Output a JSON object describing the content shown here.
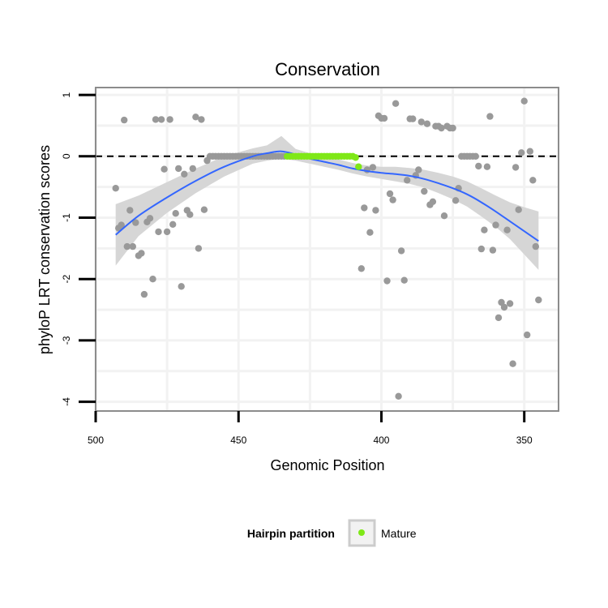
{
  "chart_data": {
    "type": "scatter",
    "title": "Conservation",
    "xlabel": "Genomic Position",
    "ylabel": "phyloP LRT conservation scores",
    "x_reversed": true,
    "xlim": [
      500,
      338
    ],
    "ylim": [
      -4.15,
      1.12
    ],
    "x_ticks": [
      500,
      450,
      400,
      350
    ],
    "x_tick_labels": [
      "500",
      "450",
      "400",
      "350"
    ],
    "y_ticks": [
      1,
      0,
      -1,
      -2,
      -3,
      -4
    ],
    "y_tick_labels": [
      "1",
      "0",
      "-1",
      "-2",
      "-3",
      "-4"
    ],
    "grid": true,
    "reference_line": {
      "y": 0,
      "style": "dashed"
    },
    "colors": {
      "points": "#999999",
      "mature": "#7fe817",
      "smooth": "#3366ff",
      "band": "#d6d6d6",
      "panel_border": "#8c8c8c",
      "grid": "#f2f2f2"
    },
    "legend": {
      "title": "Hairpin partition",
      "placement": "bottom",
      "entries": [
        "Mature"
      ]
    },
    "series": [
      {
        "role": "other",
        "points": [
          [
            493,
            -0.52
          ],
          [
            492,
            -1.17
          ],
          [
            491,
            -1.12
          ],
          [
            490,
            0.59
          ],
          [
            489,
            -1.47
          ],
          [
            488,
            -0.88
          ],
          [
            487,
            -1.47
          ],
          [
            486,
            -1.08
          ],
          [
            485,
            -1.62
          ],
          [
            484,
            -1.58
          ],
          [
            483,
            -2.25
          ],
          [
            482,
            -1.07
          ],
          [
            481,
            -1.01
          ],
          [
            480,
            -2.0
          ],
          [
            479,
            0.6
          ],
          [
            478,
            -1.23
          ],
          [
            477,
            0.6
          ],
          [
            476,
            -0.21
          ],
          [
            475,
            -1.23
          ],
          [
            474,
            0.6
          ],
          [
            473,
            -1.11
          ],
          [
            472,
            -0.93
          ],
          [
            471,
            -0.2
          ],
          [
            470,
            -2.12
          ],
          [
            469,
            -0.29
          ],
          [
            468,
            -0.88
          ],
          [
            467,
            -0.95
          ],
          [
            466,
            -0.2
          ],
          [
            465,
            0.64
          ],
          [
            464,
            -1.5
          ],
          [
            463,
            0.6
          ],
          [
            462,
            -0.87
          ],
          [
            461,
            -0.07
          ],
          [
            460,
            0.0
          ],
          [
            459,
            0.0
          ],
          [
            458,
            0.0
          ],
          [
            457,
            0.0
          ],
          [
            456,
            0.0
          ],
          [
            455,
            0.0
          ],
          [
            454,
            0.0
          ],
          [
            453,
            0.0
          ],
          [
            452,
            0.0
          ],
          [
            451,
            0.0
          ],
          [
            450,
            0.0
          ],
          [
            449,
            0.0
          ],
          [
            448,
            0.0
          ],
          [
            447,
            0.0
          ],
          [
            446,
            0.0
          ],
          [
            445,
            0.0
          ],
          [
            444,
            0.0
          ],
          [
            443,
            0.0
          ],
          [
            442,
            0.0
          ],
          [
            441,
            0.0
          ],
          [
            440,
            0.0
          ],
          [
            439,
            0.0
          ],
          [
            438,
            0.0
          ],
          [
            437,
            0.0
          ],
          [
            436,
            0.0
          ],
          [
            435,
            0.0
          ],
          [
            434,
            0.0
          ],
          [
            407,
            -1.83
          ],
          [
            406,
            -0.84
          ],
          [
            405,
            -0.22
          ],
          [
            404,
            -1.24
          ],
          [
            403,
            -0.18
          ],
          [
            402,
            -0.88
          ],
          [
            401,
            0.66
          ],
          [
            400,
            0.62
          ],
          [
            399,
            0.62
          ],
          [
            398,
            -2.03
          ],
          [
            397,
            -0.61
          ],
          [
            396,
            -0.71
          ],
          [
            395,
            0.86
          ],
          [
            394,
            -3.91
          ],
          [
            393,
            -1.54
          ],
          [
            392,
            -2.02
          ],
          [
            391,
            -0.39
          ],
          [
            390,
            0.61
          ],
          [
            389,
            0.61
          ],
          [
            388,
            -0.31
          ],
          [
            387,
            -0.22
          ],
          [
            386,
            0.56
          ],
          [
            385,
            -0.57
          ],
          [
            384,
            0.53
          ],
          [
            383,
            -0.79
          ],
          [
            382,
            -0.74
          ],
          [
            381,
            0.49
          ],
          [
            380,
            0.49
          ],
          [
            379,
            0.46
          ],
          [
            378,
            -0.97
          ],
          [
            377,
            0.49
          ],
          [
            376,
            0.46
          ],
          [
            375,
            0.46
          ],
          [
            374,
            -0.72
          ],
          [
            373,
            -0.52
          ],
          [
            372,
            0.0
          ],
          [
            371,
            0.0
          ],
          [
            370,
            0.0
          ],
          [
            369,
            0.0
          ],
          [
            368,
            0.0
          ],
          [
            367,
            0.0
          ],
          [
            366,
            -0.16
          ],
          [
            365,
            -1.51
          ],
          [
            364,
            -1.2
          ],
          [
            363,
            -0.17
          ],
          [
            362,
            0.65
          ],
          [
            361,
            -1.53
          ],
          [
            360,
            -1.12
          ],
          [
            359,
            -2.63
          ],
          [
            358,
            -2.38
          ],
          [
            357,
            -2.46
          ],
          [
            356,
            -1.2
          ],
          [
            355,
            -2.4
          ],
          [
            354,
            -3.38
          ],
          [
            353,
            -0.18
          ],
          [
            352,
            -0.87
          ],
          [
            351,
            0.06
          ],
          [
            350,
            0.9
          ],
          [
            349,
            -2.91
          ],
          [
            348,
            0.08
          ],
          [
            347,
            -0.39
          ],
          [
            346,
            -1.47
          ],
          [
            345,
            -2.34
          ]
        ]
      },
      {
        "role": "mature",
        "name": "Mature",
        "points": [
          [
            433,
            0.0
          ],
          [
            432,
            0.0
          ],
          [
            431,
            0.0
          ],
          [
            430,
            0.0
          ],
          [
            429,
            0.0
          ],
          [
            428,
            0.0
          ],
          [
            427,
            0.0
          ],
          [
            426,
            0.0
          ],
          [
            425,
            0.0
          ],
          [
            424,
            0.0
          ],
          [
            423,
            0.0
          ],
          [
            422,
            0.0
          ],
          [
            421,
            0.0
          ],
          [
            420,
            0.0
          ],
          [
            419,
            0.0
          ],
          [
            418,
            0.0
          ],
          [
            417,
            0.0
          ],
          [
            416,
            0.0
          ],
          [
            415,
            0.0
          ],
          [
            414,
            0.0
          ],
          [
            413,
            0.0
          ],
          [
            412,
            0.0
          ],
          [
            411,
            0.0
          ],
          [
            410,
            0.0
          ],
          [
            409,
            -0.02
          ],
          [
            408,
            -0.17
          ]
        ]
      }
    ],
    "smooth": {
      "x": [
        493,
        485,
        475,
        465,
        455,
        445,
        440,
        435,
        430,
        425,
        420,
        415,
        410,
        405,
        400,
        395,
        390,
        385,
        380,
        375,
        370,
        365,
        360,
        355,
        350,
        345
      ],
      "y": [
        -1.28,
        -0.97,
        -0.67,
        -0.4,
        -0.17,
        0.0,
        0.05,
        0.08,
        0.03,
        -0.04,
        -0.09,
        -0.14,
        -0.2,
        -0.24,
        -0.27,
        -0.29,
        -0.32,
        -0.37,
        -0.44,
        -0.52,
        -0.62,
        -0.75,
        -0.9,
        -1.06,
        -1.22,
        -1.38
      ],
      "lower": [
        -1.78,
        -1.3,
        -0.92,
        -0.6,
        -0.33,
        -0.12,
        -0.07,
        -0.04,
        -0.07,
        -0.12,
        -0.17,
        -0.22,
        -0.28,
        -0.33,
        -0.37,
        -0.41,
        -0.45,
        -0.51,
        -0.6,
        -0.7,
        -0.82,
        -0.98,
        -1.15,
        -1.35,
        -1.6,
        -1.85
      ],
      "upper": [
        -0.78,
        -0.64,
        -0.42,
        -0.2,
        0.0,
        0.13,
        0.18,
        0.33,
        0.12,
        0.05,
        0.0,
        -0.05,
        -0.11,
        -0.15,
        -0.17,
        -0.17,
        -0.19,
        -0.22,
        -0.27,
        -0.33,
        -0.41,
        -0.52,
        -0.64,
        -0.75,
        -0.83,
        -0.9
      ]
    }
  }
}
